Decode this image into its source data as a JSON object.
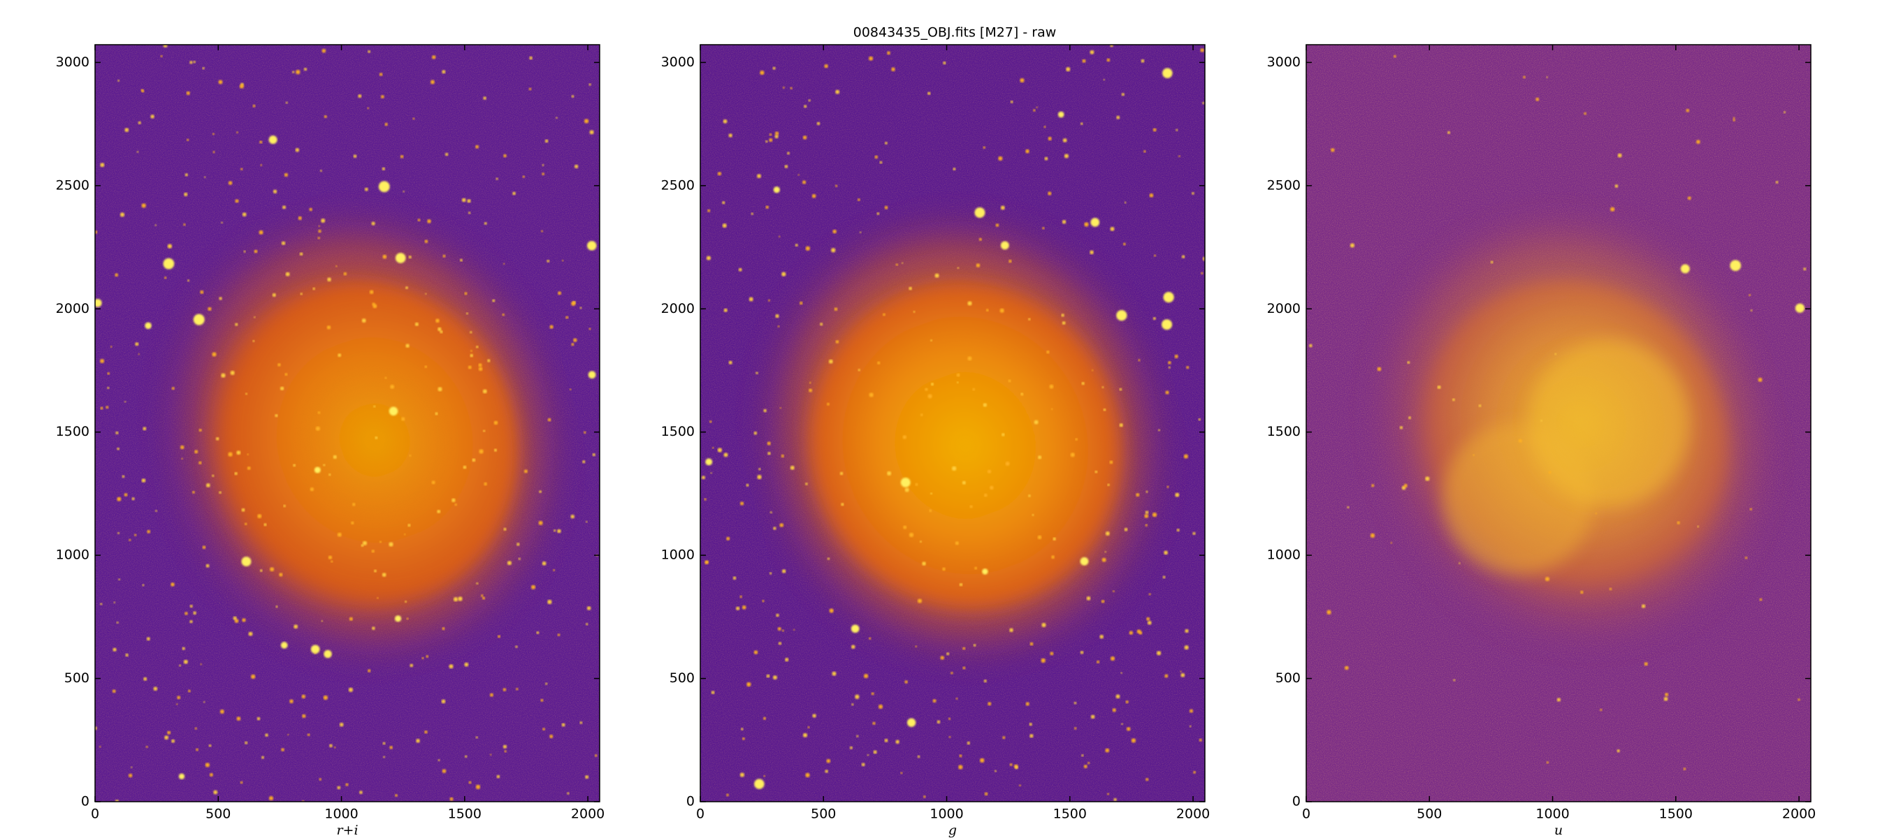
{
  "title": "00843435_OBJ.fits [M27] - raw",
  "chart_data": [
    {
      "type": "image",
      "xlabel": "r+i",
      "xlim": [
        0,
        2048
      ],
      "ylim": [
        0,
        3072
      ],
      "xticks": [
        0,
        500,
        1000,
        1500,
        2000
      ],
      "yticks": [
        0,
        500,
        1000,
        1500,
        2000,
        2500,
        3000
      ]
    },
    {
      "type": "image",
      "xlabel": "g",
      "xlim": [
        0,
        2048
      ],
      "ylim": [
        0,
        3072
      ],
      "xticks": [
        0,
        500,
        1000,
        1500,
        2000
      ],
      "yticks": [
        0,
        500,
        1000,
        1500,
        2000,
        2500,
        3000
      ]
    },
    {
      "type": "image",
      "xlabel": "u",
      "xlim": [
        0,
        2048
      ],
      "ylim": [
        0,
        3072
      ],
      "xticks": [
        0,
        500,
        1000,
        1500,
        2000
      ],
      "yticks": [
        0,
        500,
        1000,
        1500,
        2000,
        2500,
        3000
      ]
    }
  ]
}
